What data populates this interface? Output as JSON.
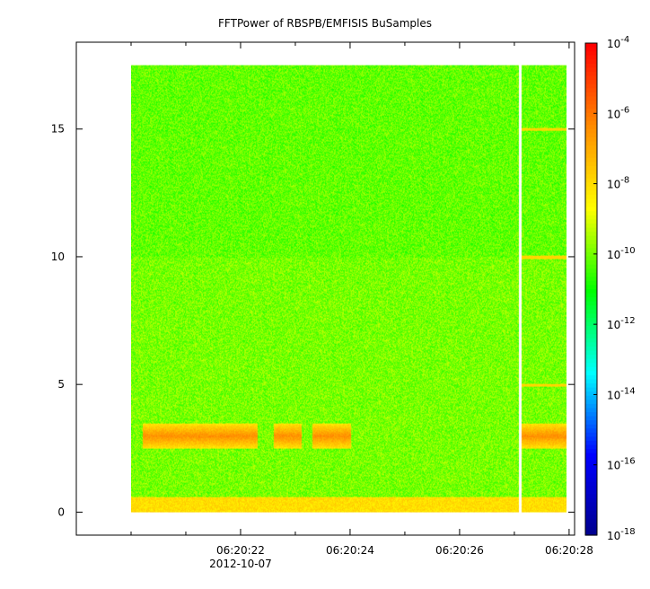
{
  "chart_data": {
    "type": "heatmap",
    "title": "FFTPower of RBSPB/EMFISIS  BuSamples",
    "xlabel": "",
    "ylabel": "",
    "x_tick_labels": [
      "06:20:22",
      "06:20:24",
      "06:20:26",
      "06:20:28"
    ],
    "x_date_label": "2012-10-07",
    "x_ticks_seconds": [
      22,
      24,
      26,
      28
    ],
    "x_range_seconds": [
      19.0,
      28.1
    ],
    "data_x_range_seconds": [
      20.0,
      27.95
    ],
    "gap_x_seconds": 27.1,
    "y_ticks": [
      0,
      5,
      10,
      15
    ],
    "ylim": [
      -0.9,
      18.4
    ],
    "data_y_range": [
      0,
      17.5
    ],
    "colorbar": {
      "scale": "log",
      "range_exponents": [
        -18,
        -4
      ],
      "tick_base": "10",
      "tick_exponents": [
        "-4",
        "-6",
        "-8",
        "-10",
        "-12",
        "-14",
        "-16",
        "-18"
      ],
      "colormap": [
        "#00008b",
        "#0000ff",
        "#00ffff",
        "#00ff00",
        "#ffff00",
        "#ff8c00",
        "#ff0000"
      ]
    },
    "background_level_exponent": -10,
    "features": [
      {
        "name": "low-frequency band",
        "y_range": [
          0,
          0.6
        ],
        "level_exponent": -8
      },
      {
        "name": "enhanced emission",
        "y_range": [
          2.5,
          3.5
        ],
        "x_ranges_seconds": [
          [
            20.2,
            22.3
          ],
          [
            22.6,
            23.1
          ],
          [
            23.3,
            24.0
          ],
          [
            27.1,
            27.95
          ]
        ],
        "level_exponent": -7
      },
      {
        "name": "narrowband lines",
        "y_values": [
          5,
          10,
          15
        ],
        "x_range_seconds": [
          27.1,
          27.95
        ],
        "level_exponent": -8
      }
    ],
    "grid": false
  }
}
